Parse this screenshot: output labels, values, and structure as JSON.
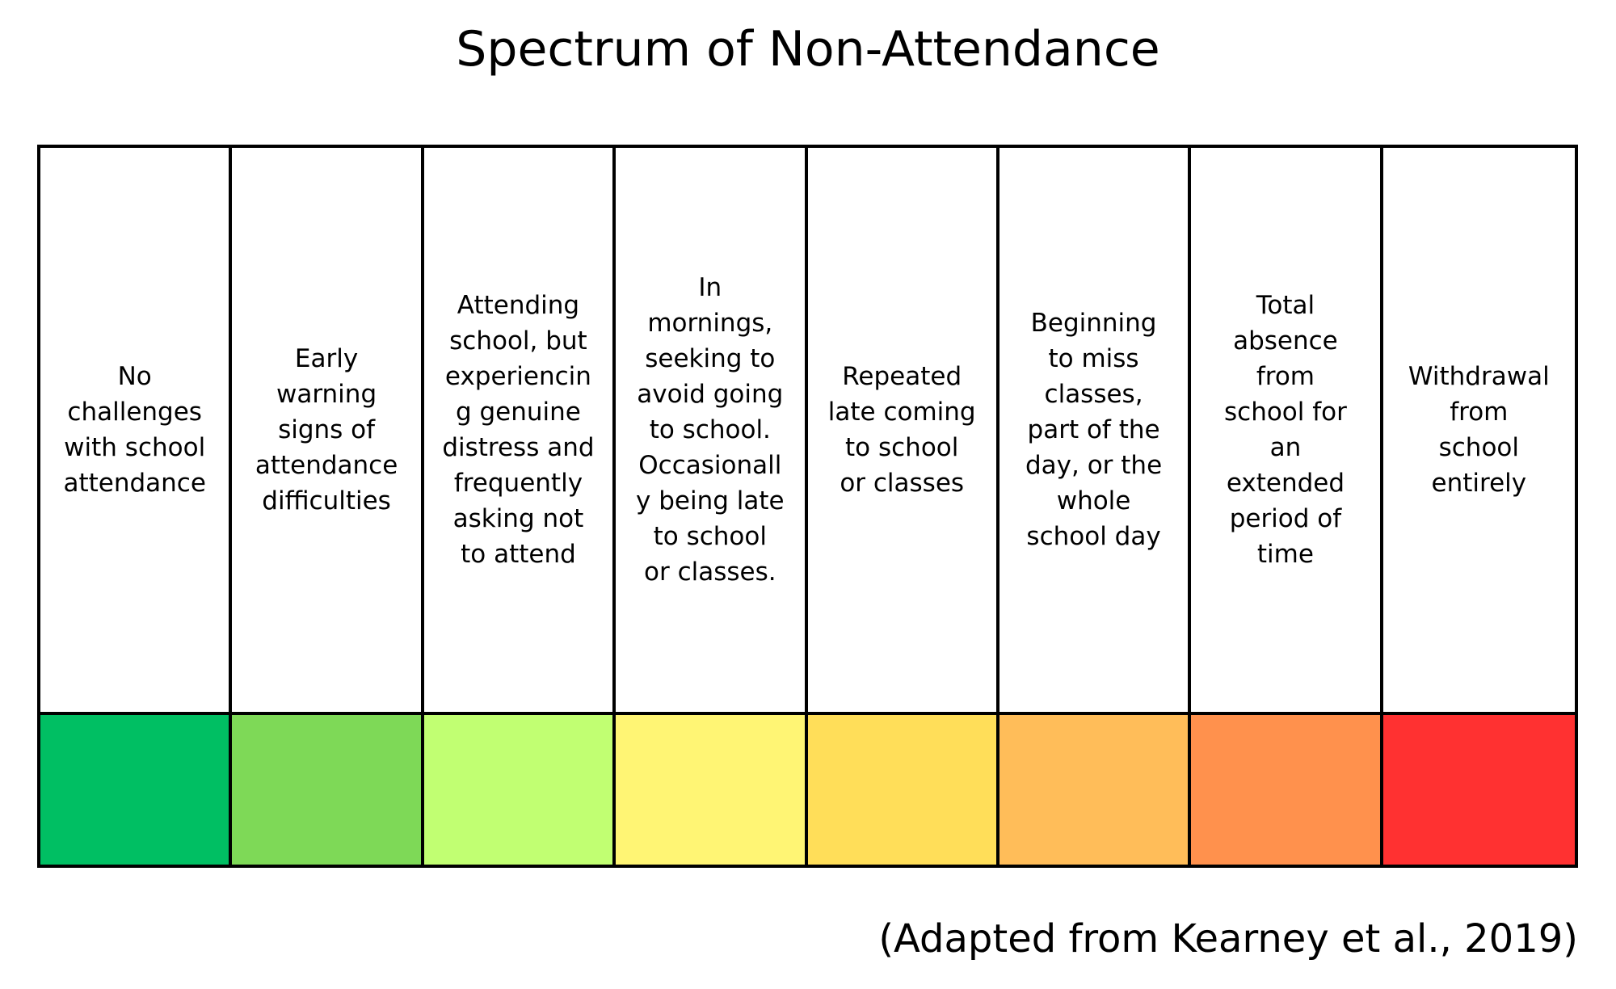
{
  "title": "Spectrum of Non-Attendance",
  "stages": [
    {
      "text": "No\nchallenges\nwith school\nattendance",
      "color": "#00BF63"
    },
    {
      "text": "Early\nwarning\nsigns of\nattendance\ndifficulties",
      "color": "#7ED957"
    },
    {
      "text": "Attending\nschool, but\nexperiencin\ng genuine\ndistress and\nfrequently\nasking not\nto attend",
      "color": "#C1FF72"
    },
    {
      "text": "In\nmornings,\nseeking to\navoid going\nto school.\nOccasionall\ny being late\nto school\nor classes.",
      "color": "#FFF574"
    },
    {
      "text": "Repeated\nlate coming\nto school\nor classes",
      "color": "#FFDE59"
    },
    {
      "text": "Beginning\nto miss\nclasses,\npart of the\nday, or the\nwhole\nschool day",
      "color": "#FFBD59"
    },
    {
      "text": "Total\nabsence\nfrom\nschool for\nan\nextended\nperiod of\ntime",
      "color": "#FF914D"
    },
    {
      "text": "Withdrawal\nfrom\nschool\nentirely",
      "color": "#FF3131"
    }
  ],
  "footer": "(Adapted from Kearney et al., 2019)"
}
